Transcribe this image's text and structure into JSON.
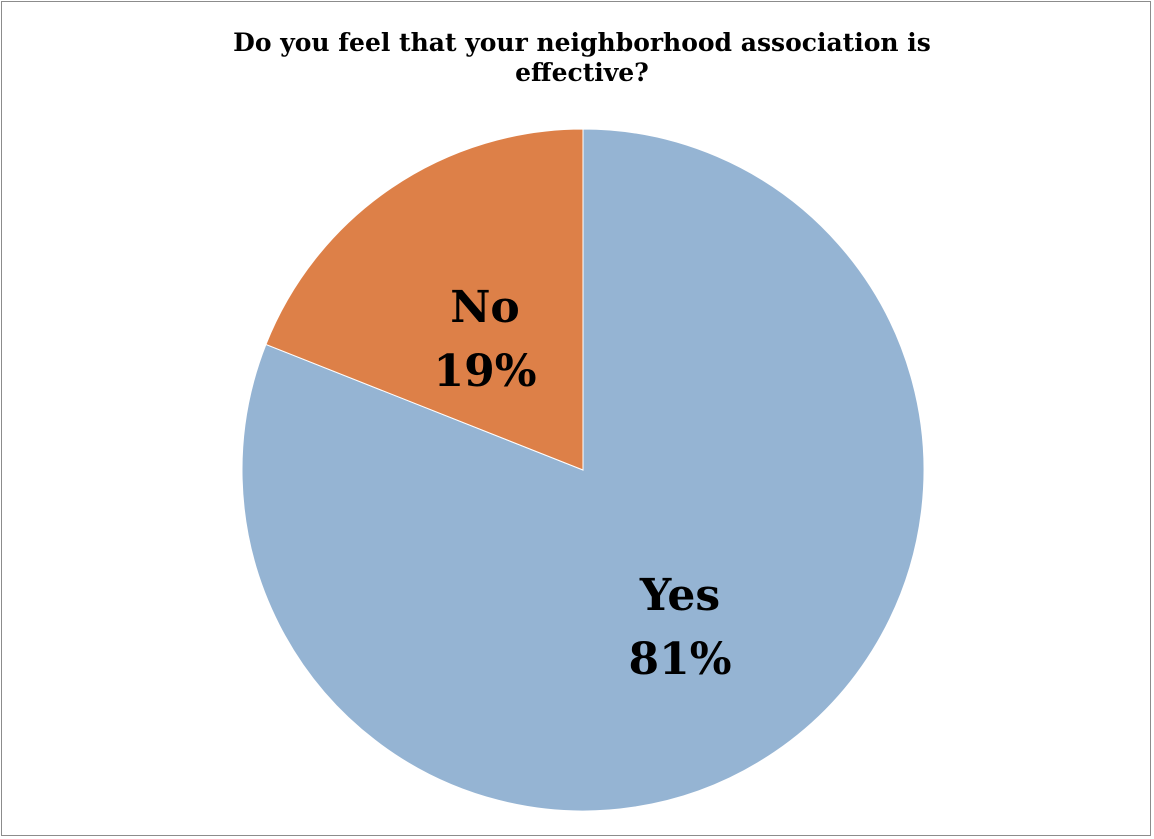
{
  "chart_data": {
    "type": "pie",
    "title_lines": [
      "Do you feel that your neighborhood association is",
      "effective?"
    ],
    "slices": [
      {
        "label": "Yes",
        "percent_label": "81%",
        "value": 81,
        "color": "#95b4d3"
      },
      {
        "label": "No",
        "percent_label": "19%",
        "value": 19,
        "color": "#dd8048"
      }
    ],
    "start_at": "top",
    "direction": "clockwise",
    "legend": "none",
    "data_labels": "inside"
  }
}
